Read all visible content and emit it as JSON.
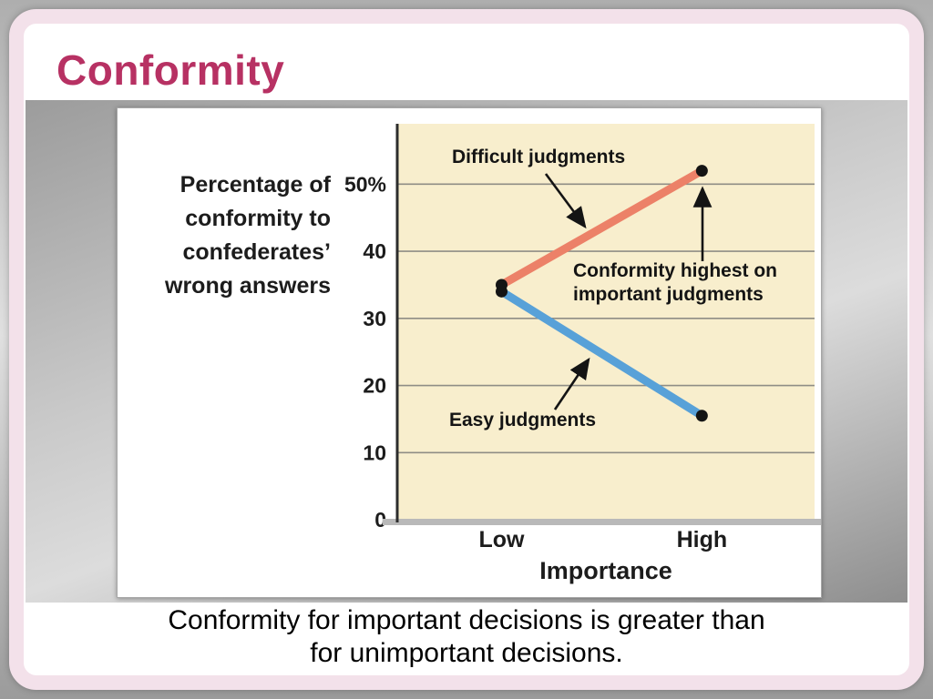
{
  "slide": {
    "title": "Conformity",
    "caption": {
      "line1": "Conformity for important decisions is greater than",
      "line2": "for unimportant decisions.",
      "full": "Conformity for important decisions is greater than for unimportant decisions."
    },
    "colors": {
      "title": "#b73163",
      "frame": "#f3e1ea",
      "caption_text": "#000000"
    }
  },
  "chart_data": {
    "type": "line",
    "title": "",
    "xlabel": "Importance",
    "ylabel": "Percentage of conformity to confederates’ wrong answers",
    "ylabel_lines": [
      "Percentage of",
      "conformity to",
      "confederates’",
      "wrong answers"
    ],
    "categories": [
      "Low",
      "High"
    ],
    "series": [
      {
        "name": "Difficult judgments",
        "values": [
          35,
          52
        ],
        "color": "#ec8168"
      },
      {
        "name": "Easy judgments",
        "values": [
          34,
          15.5
        ],
        "color": "#58a1d8"
      }
    ],
    "ylim": [
      0,
      59
    ],
    "yticks": [
      0,
      10,
      20,
      30,
      40,
      50
    ],
    "ytick_labels": [
      "0",
      "10",
      "20",
      "30",
      "40",
      "50%"
    ],
    "grid": true,
    "legend_position": "none",
    "plot_bg": "#f8eecd",
    "annotations": [
      {
        "text": "Difficult judgments"
      },
      {
        "text": "Conformity highest on important judgments",
        "lines": [
          "Conformity highest on",
          "important judgments"
        ]
      },
      {
        "text": "Easy judgments"
      }
    ]
  }
}
